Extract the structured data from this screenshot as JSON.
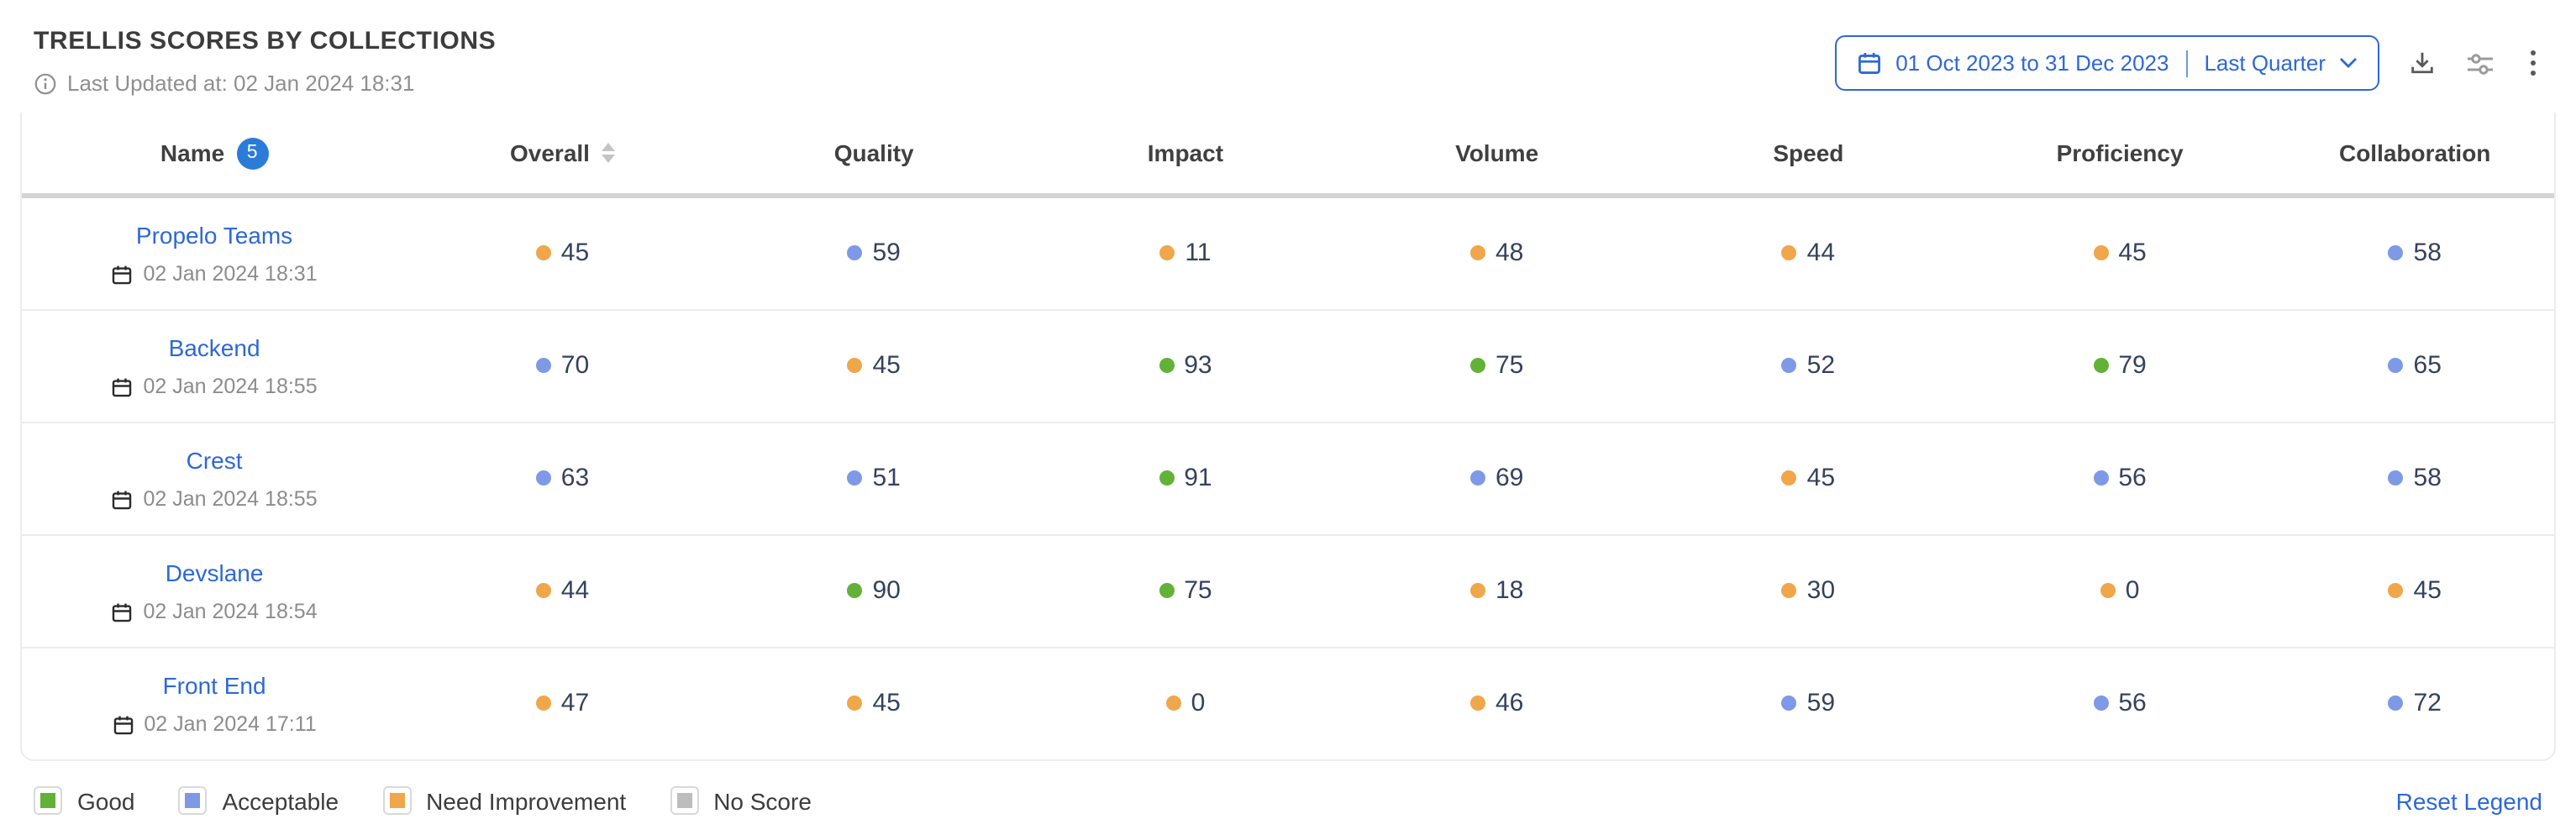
{
  "header": {
    "title": "TRELLIS SCORES BY COLLECTIONS",
    "last_updated": "Last Updated at: 02 Jan 2024 18:31",
    "date_range": {
      "range_label": "01 Oct 2023 to 31 Dec 2023",
      "preset_label": "Last Quarter"
    }
  },
  "table": {
    "columns": [
      {
        "label": "Name",
        "badge": "5"
      },
      {
        "label": "Overall",
        "sortable": true
      },
      {
        "label": "Quality"
      },
      {
        "label": "Impact"
      },
      {
        "label": "Volume"
      },
      {
        "label": "Speed"
      },
      {
        "label": "Proficiency"
      },
      {
        "label": "Collaboration"
      }
    ],
    "rows": [
      {
        "name": "Propelo Teams",
        "updated": "02 Jan 2024 18:31",
        "scores": [
          {
            "value": "45",
            "status": "need_improvement"
          },
          {
            "value": "59",
            "status": "acceptable"
          },
          {
            "value": "11",
            "status": "need_improvement"
          },
          {
            "value": "48",
            "status": "need_improvement"
          },
          {
            "value": "44",
            "status": "need_improvement"
          },
          {
            "value": "45",
            "status": "need_improvement"
          },
          {
            "value": "58",
            "status": "acceptable"
          }
        ]
      },
      {
        "name": "Backend",
        "updated": "02 Jan 2024 18:55",
        "scores": [
          {
            "value": "70",
            "status": "acceptable"
          },
          {
            "value": "45",
            "status": "need_improvement"
          },
          {
            "value": "93",
            "status": "good"
          },
          {
            "value": "75",
            "status": "good"
          },
          {
            "value": "52",
            "status": "acceptable"
          },
          {
            "value": "79",
            "status": "good"
          },
          {
            "value": "65",
            "status": "acceptable"
          }
        ]
      },
      {
        "name": "Crest",
        "updated": "02 Jan 2024 18:55",
        "scores": [
          {
            "value": "63",
            "status": "acceptable"
          },
          {
            "value": "51",
            "status": "acceptable"
          },
          {
            "value": "91",
            "status": "good"
          },
          {
            "value": "69",
            "status": "acceptable"
          },
          {
            "value": "45",
            "status": "need_improvement"
          },
          {
            "value": "56",
            "status": "acceptable"
          },
          {
            "value": "58",
            "status": "acceptable"
          }
        ]
      },
      {
        "name": "Devslane",
        "updated": "02 Jan 2024 18:54",
        "scores": [
          {
            "value": "44",
            "status": "need_improvement"
          },
          {
            "value": "90",
            "status": "good"
          },
          {
            "value": "75",
            "status": "good"
          },
          {
            "value": "18",
            "status": "need_improvement"
          },
          {
            "value": "30",
            "status": "need_improvement"
          },
          {
            "value": "0",
            "status": "need_improvement"
          },
          {
            "value": "45",
            "status": "need_improvement"
          }
        ]
      },
      {
        "name": "Front End",
        "updated": "02 Jan 2024 17:11",
        "scores": [
          {
            "value": "47",
            "status": "need_improvement"
          },
          {
            "value": "45",
            "status": "need_improvement"
          },
          {
            "value": "0",
            "status": "need_improvement"
          },
          {
            "value": "46",
            "status": "need_improvement"
          },
          {
            "value": "59",
            "status": "acceptable"
          },
          {
            "value": "56",
            "status": "acceptable"
          },
          {
            "value": "72",
            "status": "acceptable"
          }
        ]
      }
    ]
  },
  "legend": {
    "items": [
      {
        "label": "Good",
        "status": "good"
      },
      {
        "label": "Acceptable",
        "status": "acceptable"
      },
      {
        "label": "Need Improvement",
        "status": "need_improvement"
      },
      {
        "label": "No Score",
        "status": "no_score"
      }
    ],
    "reset_label": "Reset Legend"
  },
  "colors": {
    "good": "#61b237",
    "acceptable": "#7e99e6",
    "need_improvement": "#f0a64a",
    "no_score": "#bdbdbd",
    "accent": "#2d68d8"
  }
}
